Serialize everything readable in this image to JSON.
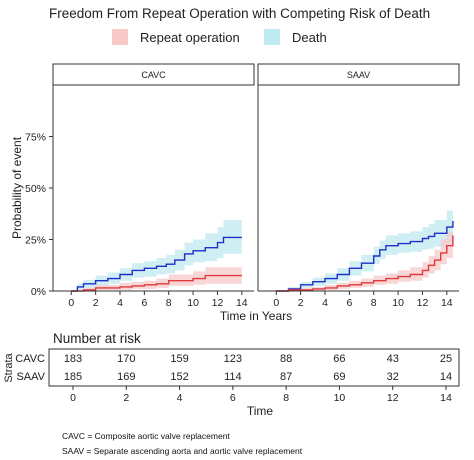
{
  "chart_data": {
    "type": "line",
    "title": "Freedom From Repeat Operation with Competing Risk of Death",
    "legend": [
      {
        "name": "Repeat operation",
        "fill": "#f7c9c9",
        "line": "#e0393e"
      },
      {
        "name": "Death",
        "fill": "#bfeaf0",
        "line": "#1f2fc9"
      }
    ],
    "xlabel": "Time in Years",
    "ylabel": "Probability of event",
    "xticks": [
      0,
      2,
      4,
      6,
      8,
      10,
      12,
      14
    ],
    "xtick_labels": [
      "0",
      "2",
      "4",
      "6",
      "8",
      "10",
      "12",
      "14"
    ],
    "yticks": [
      0,
      25,
      50,
      75
    ],
    "ytick_labels": [
      "0%",
      "25%",
      "50%",
      "75%"
    ],
    "xlim": [
      -1.5,
      15
    ],
    "ylim": [
      0,
      100
    ],
    "grid": false,
    "panels": [
      {
        "name": "CAVC",
        "series": [
          {
            "name": "Death",
            "x": [
              0,
              0.5,
              1,
              2,
              3,
              4,
              5,
              6,
              7,
              7.8,
              8.5,
              9.3,
              10,
              11,
              12,
              12.5,
              14
            ],
            "y": [
              0,
              2,
              3.5,
              5,
              6,
              8,
              10,
              11,
              12,
              13,
              15,
              18,
              19.5,
              21,
              23.5,
              26,
              26
            ],
            "lower": [
              0,
              0.5,
              1.5,
              2.5,
              3.5,
              5,
              6.5,
              7,
              8,
              8.5,
              10,
              12.5,
              14,
              14.5,
              16,
              18,
              18
            ],
            "upper": [
              0,
              3.5,
              5.5,
              7.5,
              9,
              11,
              13.5,
              14.5,
              16,
              17.5,
              20,
              23.5,
              25,
              28,
              31,
              34.5,
              35
            ]
          },
          {
            "name": "Repeat operation",
            "x": [
              0,
              1,
              2,
              3,
              4,
              5,
              6,
              7,
              8,
              9,
              10,
              11,
              14
            ],
            "y": [
              0,
              0.5,
              1.5,
              1.5,
              2,
              2.5,
              3,
              3.5,
              5,
              5,
              6,
              7.5,
              7.5
            ],
            "lower": [
              0,
              0,
              0.5,
              0.5,
              0.5,
              1,
              1,
              1.5,
              2.5,
              2.5,
              3,
              3.5,
              3.5
            ],
            "upper": [
              0,
              1.5,
              3,
              3,
              4,
              4.5,
              5,
              6,
              8,
              8,
              9.5,
              11.5,
              12.5
            ]
          }
        ]
      },
      {
        "name": "SAAV",
        "series": [
          {
            "name": "Death",
            "x": [
              0,
              1,
              2,
              3,
              4,
              5,
              6,
              7,
              8,
              8.5,
              9,
              10,
              11,
              12,
              12.5,
              13,
              14,
              14.5
            ],
            "y": [
              0,
              1,
              3,
              4.5,
              6,
              8,
              11,
              13.5,
              17,
              20,
              22,
              23,
              24,
              25.5,
              26.5,
              28,
              31,
              34
            ],
            "lower": [
              0,
              0,
              1.5,
              2.5,
              3.5,
              5,
              7.5,
              9.5,
              13,
              15.5,
              17.5,
              18.5,
              19,
              20,
              20.5,
              21.5,
              23.5,
              26
            ],
            "upper": [
              0,
              2,
              4.5,
              6.5,
              8.5,
              11,
              14.5,
              17.5,
              21.5,
              24.5,
              27,
              28,
              29,
              31,
              32.5,
              34.5,
              39,
              44
            ]
          },
          {
            "name": "Repeat operation",
            "x": [
              0,
              1,
              2,
              3,
              4,
              5,
              6,
              7,
              8,
              9,
              10,
              11,
              12,
              12.5,
              13,
              13.5,
              14,
              14.5
            ],
            "y": [
              0,
              0.5,
              0.5,
              1,
              1.5,
              2.5,
              3,
              4,
              5,
              6,
              7,
              8,
              10,
              12.5,
              15,
              18.5,
              22,
              27
            ],
            "lower": [
              0,
              0,
              0,
              0,
              0.5,
              1,
              1.5,
              2,
              3,
              3.5,
              4.5,
              5,
              6.5,
              8.5,
              10,
              13,
              16,
              20
            ],
            "upper": [
              0,
              1.5,
              1.5,
              2,
              3,
              4,
              5,
              6,
              7.5,
              8.5,
              10,
              11.5,
              14,
              17,
              20,
              25,
              28.5,
              34
            ]
          }
        ]
      }
    ],
    "risk_table": {
      "title": "Number at risk",
      "strata_label": "Strata",
      "xlabel": "Time",
      "times": [
        "0",
        "2",
        "4",
        "6",
        "8",
        "10",
        "12",
        "14"
      ],
      "rows": [
        {
          "name": "CAVC",
          "values": [
            "183",
            "170",
            "159",
            "123",
            "88",
            "66",
            "43",
            "25"
          ]
        },
        {
          "name": "SAAV",
          "values": [
            "185",
            "169",
            "152",
            "114",
            "87",
            "69",
            "32",
            "14"
          ]
        }
      ]
    }
  },
  "footnotes": [
    "CAVC = Composite aortic valve replacement",
    "SAAV = Separate ascending aorta and aortic valve replacement"
  ]
}
